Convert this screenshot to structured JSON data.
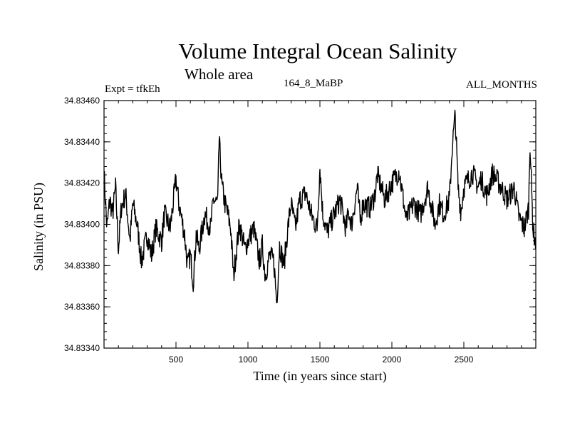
{
  "header": {
    "title": "Volume Integral Ocean Salinity",
    "subtitle": "Whole area",
    "experiment": "Expt = tfkEh",
    "run": "164_8_MaBP",
    "months": "ALL_MONTHS"
  },
  "chart_data": {
    "type": "line",
    "title": "Volume Integral Ocean Salinity",
    "subtitle": "Whole area",
    "xlabel": "Time (in years since start)",
    "ylabel": "Salinity (in PSU)",
    "xlim": [
      0,
      3000
    ],
    "ylim": [
      34.8334,
      34.8346
    ],
    "xticks": [
      500,
      1000,
      1500,
      2000,
      2500
    ],
    "yticks": [
      "34.83340",
      "34.83360",
      "34.83380",
      "34.83400",
      "34.83420",
      "34.83440",
      "34.83460"
    ],
    "grid": false,
    "series": [
      {
        "x": [
          0,
          20,
          40,
          60,
          80,
          100,
          120,
          150,
          180,
          200,
          230,
          260,
          300,
          330,
          360,
          400,
          420,
          460,
          500,
          520,
          560,
          580,
          600,
          620,
          640,
          660,
          700,
          740,
          760,
          790,
          800,
          820,
          840,
          860,
          880,
          900,
          940,
          980,
          1000,
          1020,
          1040,
          1080,
          1100,
          1120,
          1150,
          1180,
          1200,
          1220,
          1250,
          1280,
          1300,
          1330,
          1360,
          1400,
          1440,
          1480,
          1500,
          1520,
          1550,
          1600,
          1640,
          1680,
          1700,
          1720,
          1760,
          1780,
          1800,
          1850,
          1880,
          1900,
          1950,
          2000,
          2050,
          2100,
          2150,
          2200,
          2250,
          2300,
          2330,
          2360,
          2400,
          2420,
          2440,
          2460,
          2480,
          2500,
          2560,
          2600,
          2620,
          2660,
          2700,
          2760,
          2800,
          2850,
          2880,
          2920,
          2950,
          2960,
          2980,
          3000
        ],
        "values": [
          34.83425,
          34.83398,
          34.83412,
          34.83405,
          34.83418,
          34.83388,
          34.83408,
          34.83415,
          34.83392,
          34.8341,
          34.834,
          34.83382,
          34.83395,
          34.83385,
          34.83398,
          34.83392,
          34.83405,
          34.83398,
          34.83422,
          34.8341,
          34.83395,
          34.8338,
          34.83385,
          34.83372,
          34.83395,
          34.83388,
          34.83405,
          34.83398,
          34.83412,
          34.8341,
          34.83441,
          34.83418,
          34.8341,
          34.83405,
          34.83398,
          34.83375,
          34.834,
          34.83388,
          34.83392,
          34.83395,
          34.83398,
          34.83382,
          34.8339,
          34.83375,
          34.83385,
          34.83382,
          34.83362,
          34.8339,
          34.8338,
          34.834,
          34.8341,
          34.83398,
          34.83412,
          34.83415,
          34.83405,
          34.83398,
          34.83428,
          34.83405,
          34.83396,
          34.83405,
          34.83412,
          34.83398,
          34.83406,
          34.834,
          34.83418,
          34.83402,
          34.8341,
          34.83408,
          34.83414,
          34.83424,
          34.83412,
          34.8342,
          34.83426,
          34.83402,
          34.8341,
          34.83405,
          34.83418,
          34.834,
          34.8341,
          34.83405,
          34.83412,
          34.83438,
          34.83453,
          34.83418,
          34.83406,
          34.83418,
          34.83425,
          34.83418,
          34.83422,
          34.83414,
          34.83425,
          34.83418,
          34.83412,
          34.83418,
          34.83404,
          34.83398,
          34.83408,
          34.8344,
          34.83398,
          34.8339
        ]
      }
    ]
  }
}
